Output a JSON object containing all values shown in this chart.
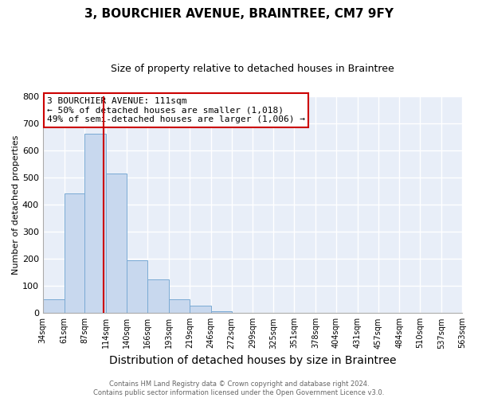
{
  "title": "3, BOURCHIER AVENUE, BRAINTREE, CM7 9FY",
  "subtitle": "Size of property relative to detached houses in Braintree",
  "xlabel": "Distribution of detached houses by size in Braintree",
  "ylabel": "Number of detached properties",
  "bar_edges": [
    34,
    61,
    87,
    114,
    140,
    166,
    193,
    219,
    246,
    272,
    299,
    325,
    351,
    378,
    404,
    431,
    457,
    484,
    510,
    537,
    563
  ],
  "bar_heights": [
    50,
    440,
    660,
    515,
    195,
    125,
    50,
    27,
    8,
    0,
    0,
    0,
    0,
    0,
    0,
    0,
    0,
    0,
    0,
    0
  ],
  "bar_color": "#c8d8ee",
  "bar_edge_color": "#7aaad4",
  "property_value": 111,
  "vline_color": "#cc0000",
  "ylim": [
    0,
    800
  ],
  "yticks": [
    0,
    100,
    200,
    300,
    400,
    500,
    600,
    700,
    800
  ],
  "annotation_title": "3 BOURCHIER AVENUE: 111sqm",
  "annotation_line1": "← 50% of detached houses are smaller (1,018)",
  "annotation_line2": "49% of semi-detached houses are larger (1,006) →",
  "annotation_box_color": "#ffffff",
  "annotation_box_edge": "#cc0000",
  "footer_line1": "Contains HM Land Registry data © Crown copyright and database right 2024.",
  "footer_line2": "Contains public sector information licensed under the Open Government Licence v3.0.",
  "tick_labels": [
    "34sqm",
    "61sqm",
    "87sqm",
    "114sqm",
    "140sqm",
    "166sqm",
    "193sqm",
    "219sqm",
    "246sqm",
    "272sqm",
    "299sqm",
    "325sqm",
    "351sqm",
    "378sqm",
    "404sqm",
    "431sqm",
    "457sqm",
    "484sqm",
    "510sqm",
    "537sqm",
    "563sqm"
  ],
  "figure_bg": "#ffffff",
  "axes_bg": "#e8eef8",
  "grid_color": "#ffffff",
  "title_fontsize": 11,
  "subtitle_fontsize": 9,
  "ylabel_fontsize": 8,
  "xlabel_fontsize": 10,
  "tick_fontsize": 7,
  "annotation_fontsize": 8,
  "footer_fontsize": 6
}
